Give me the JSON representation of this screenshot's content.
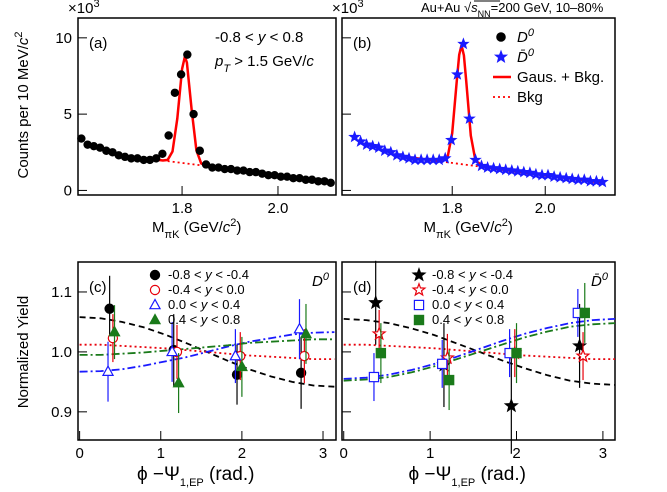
{
  "chart_data": [
    {
      "type": "scatter",
      "label": "(a)",
      "multiplier": [
        "×10",
        "3"
      ],
      "y_label": [
        "Counts per 10 MeV/",
        "c",
        "2"
      ],
      "x_label": [
        "M",
        "πK",
        " (GeV/",
        "c",
        "2",
        ")"
      ],
      "notes": [
        [
          "-0.8 < ",
          "y",
          " < 0.8"
        ],
        [
          "p",
          "T",
          " > 1.5 GeV/",
          "c"
        ]
      ],
      "xlim": [
        1.583,
        2.121
      ],
      "ylim": [
        -0.3,
        11.3
      ],
      "xticks": [
        1.8,
        {
          "value": 2,
          "label": "2.0"
        }
      ],
      "yticks": [
        0,
        5,
        10
      ],
      "series": [
        {
          "color": "#000000",
          "marker": "circle",
          "x": [
            1.59,
            1.603,
            1.616,
            1.629,
            1.642,
            1.655,
            1.668,
            1.681,
            1.694,
            1.707,
            1.72,
            1.733,
            1.746,
            1.759,
            1.772,
            1.785,
            1.798,
            1.811,
            1.824,
            1.837,
            1.85,
            1.863,
            1.876,
            1.889,
            1.902,
            1.915,
            1.928,
            1.941,
            1.954,
            1.967,
            1.98,
            1.993,
            2.006,
            2.019,
            2.032,
            2.045,
            2.058,
            2.071,
            2.084,
            2.097,
            2.11
          ],
          "values": [
            3.4,
            3.0,
            2.9,
            2.8,
            2.6,
            2.5,
            2.3,
            2.2,
            2.1,
            2.1,
            2.0,
            2.0,
            2.1,
            2.4,
            3.6,
            6.4,
            7.6,
            8.9,
            5.0,
            2.6,
            1.7,
            1.5,
            1.5,
            1.4,
            1.4,
            1.3,
            1.3,
            1.2,
            1.2,
            1.1,
            1.0,
            1.0,
            0.9,
            0.9,
            0.8,
            0.8,
            0.7,
            0.7,
            0.6,
            0.6,
            0.5
          ]
        }
      ],
      "lines": [
        {
          "color": "#ff0000",
          "dash": "solid",
          "x": [
            1.74,
            1.76,
            1.77,
            1.78,
            1.79,
            1.8,
            1.806,
            1.81,
            1.82,
            1.83,
            1.84,
            1.85,
            1.87,
            1.9,
            1.95,
            2.0,
            2.05,
            2.11
          ],
          "values": [
            2.04,
            1.96,
            2.0,
            2.55,
            4.71,
            7.97,
            8.78,
            8.38,
            5.26,
            2.63,
            1.77,
            1.6,
            1.52,
            1.4,
            1.2,
            1.0,
            0.8,
            0.56
          ]
        },
        {
          "color": "#ff0000",
          "dash": "dotted",
          "x": [
            1.77,
            2.12
          ],
          "values": [
            1.92,
            0.52
          ]
        }
      ]
    },
    {
      "type": "scatter",
      "label": "(b)",
      "multiplier": [
        "×10",
        "3"
      ],
      "header": [
        "Au+Au ",
        "√",
        "s",
        "NN",
        "=200 GeV, 10–80%"
      ],
      "x_label": [
        "M",
        "πK",
        " (GeV/",
        "c",
        "2",
        ")"
      ],
      "xlim": [
        1.563,
        2.15
      ],
      "ylim": [
        -0.3,
        11.3
      ],
      "xticks": [
        1.8,
        {
          "value": 2,
          "label": "2.0"
        }
      ],
      "yticks": [
        0,
        5,
        10
      ],
      "y_tick_labels": false,
      "legend": "upper right",
      "series": [
        {
          "name": [
            "D",
            "0"
          ],
          "color": "#000000",
          "marker": "circle",
          "x": [],
          "values": []
        },
        {
          "name": [
            "D̄",
            "0"
          ],
          "color": "#1a1aff",
          "marker": "star",
          "x": [
            1.59,
            1.603,
            1.616,
            1.629,
            1.642,
            1.655,
            1.668,
            1.681,
            1.694,
            1.707,
            1.72,
            1.733,
            1.746,
            1.759,
            1.772,
            1.785,
            1.798,
            1.811,
            1.824,
            1.837,
            1.85,
            1.863,
            1.876,
            1.889,
            1.902,
            1.915,
            1.928,
            1.941,
            1.954,
            1.967,
            1.98,
            1.993,
            2.006,
            2.019,
            2.032,
            2.045,
            2.058,
            2.071,
            2.084,
            2.097,
            2.11,
            2.123
          ],
          "values": [
            3.5,
            3.2,
            3.0,
            2.9,
            2.8,
            2.6,
            2.5,
            2.3,
            2.2,
            2.1,
            2.0,
            2.0,
            2.0,
            2.0,
            2.0,
            2.1,
            3.3,
            7.6,
            9.6,
            4.7,
            2.0,
            1.6,
            1.5,
            1.45,
            1.4,
            1.35,
            1.3,
            1.25,
            1.2,
            1.15,
            1.05,
            1.0,
            1.0,
            0.9,
            0.85,
            0.8,
            0.75,
            0.7,
            0.7,
            0.6,
            0.6,
            0.55
          ]
        }
      ],
      "lines": [
        {
          "name": "Gaus. + Bkg.",
          "color": "#ff0000",
          "dash": "solid",
          "x": [
            1.7,
            1.77,
            1.79,
            1.8,
            1.81,
            1.815,
            1.82,
            1.825,
            1.83,
            1.84,
            1.85,
            1.87,
            1.9,
            1.95,
            2.0,
            2.05,
            2.12
          ],
          "values": [
            2.2,
            1.92,
            2.18,
            3.75,
            7.27,
            8.89,
            9.52,
            8.85,
            7.19,
            3.59,
            1.94,
            1.52,
            1.4,
            1.2,
            1.0,
            0.8,
            0.52
          ]
        },
        {
          "name": "Bkg",
          "color": "#ff0000",
          "dash": "dotted",
          "x": [
            1.68,
            2.12
          ],
          "values": [
            2.28,
            0.52
          ]
        }
      ]
    },
    {
      "type": "scatter",
      "label": "(c)",
      "corner": [
        "D",
        "0"
      ],
      "y_label": "Normalized Yield",
      "x_label": [
        "ϕ −Ψ",
        "1,EP",
        " (rad.)"
      ],
      "xlim": [
        -0.02,
        3.16
      ],
      "ylim": [
        0.853,
        1.15
      ],
      "xticks": [
        0,
        1,
        2,
        3
      ],
      "yticks": [
        0.9,
        {
          "value": 1,
          "label": "1.0"
        },
        1.1
      ],
      "legend": "upper center",
      "series": [
        {
          "name": [
            "-0.8 < ",
            "y",
            " < -0.4"
          ],
          "color": "#000000",
          "marker": "circle",
          "x": [
            0.37,
            1.16,
            1.94,
            2.73
          ],
          "values": [
            1.072,
            1.003,
            0.962,
            0.965
          ],
          "errors": [
            0.055,
            0.06,
            0.05,
            0.06
          ]
        },
        {
          "name": [
            "-0.4 < ",
            "y",
            " < 0.0"
          ],
          "color": "#e8000b",
          "marker": "circle-open",
          "x": [
            0.41,
            1.2,
            1.98,
            2.77
          ],
          "values": [
            1.023,
            1.0,
            0.993,
            0.993
          ],
          "errors": [
            0.04,
            0.045,
            0.04,
            0.045
          ]
        },
        {
          "name": [
            "0.0 < ",
            "y",
            " < 0.4"
          ],
          "color": "#1a1aff",
          "marker": "triangle-open",
          "x": [
            0.35,
            1.14,
            1.92,
            2.71
          ],
          "values": [
            0.967,
            1.0,
            0.993,
            1.038
          ],
          "errors": [
            0.05,
            0.05,
            0.045,
            0.05
          ]
        },
        {
          "name": [
            "0.4 < ",
            "y",
            " < 0.8"
          ],
          "color": "#1a7a1a",
          "marker": "triangle",
          "x": [
            0.43,
            1.22,
            2.0,
            2.79
          ],
          "values": [
            1.033,
            0.948,
            0.975,
            1.03
          ],
          "errors": [
            0.045,
            0.05,
            0.05,
            0.05
          ]
        }
      ],
      "lines": [
        {
          "color": "#000000",
          "dash": "dashed",
          "x": [
            0,
            0.26,
            0.52,
            0.79,
            1.05,
            1.31,
            1.57,
            1.83,
            2.09,
            2.36,
            2.62,
            2.88,
            3.14
          ],
          "values": [
            1.058,
            1.056,
            1.05,
            1.041,
            1.029,
            1.015,
            1.0,
            0.985,
            0.971,
            0.959,
            0.95,
            0.944,
            0.942
          ]
        },
        {
          "color": "#e8000b",
          "dash": "dotted",
          "x": [
            0,
            0.26,
            0.52,
            0.79,
            1.05,
            1.31,
            1.57,
            1.83,
            2.09,
            2.36,
            2.62,
            2.88,
            3.14
          ],
          "values": [
            1.012,
            1.012,
            1.01,
            1.008,
            1.006,
            1.003,
            1.0,
            0.997,
            0.994,
            0.992,
            0.99,
            0.988,
            0.988
          ]
        },
        {
          "color": "#1a1aff",
          "dash": "dashdot",
          "x": [
            0,
            0.26,
            0.52,
            0.79,
            1.05,
            1.31,
            1.57,
            1.83,
            2.09,
            2.36,
            2.62,
            2.88,
            3.14
          ],
          "values": [
            0.967,
            0.968,
            0.971,
            0.977,
            0.984,
            0.991,
            1.0,
            1.009,
            1.017,
            1.023,
            1.029,
            1.032,
            1.033
          ]
        },
        {
          "color": "#1a7a1a",
          "dash": "dashdot",
          "x": [
            0,
            0.26,
            0.52,
            0.79,
            1.05,
            1.31,
            1.57,
            1.83,
            2.09,
            2.36,
            2.62,
            2.88,
            3.14
          ],
          "values": [
            0.995,
            0.995,
            0.997,
            0.999,
            1.002,
            1.005,
            1.008,
            1.011,
            1.015,
            1.017,
            1.019,
            1.021,
            1.021
          ]
        }
      ]
    },
    {
      "type": "scatter",
      "label": "(d)",
      "corner": [
        "D̄",
        "0"
      ],
      "x_label": [
        "ϕ −Ψ",
        "1,EP",
        " (rad.)"
      ],
      "xlim": [
        -0.02,
        3.14
      ],
      "ylim": [
        0.853,
        1.15
      ],
      "xticks": [
        0,
        1,
        2,
        3
      ],
      "yticks": [
        0.9,
        {
          "value": 1,
          "label": "1.0"
        },
        1.1
      ],
      "y_tick_labels": false,
      "legend": "upper center",
      "series": [
        {
          "name": [
            "-0.8 < ",
            "y",
            " < -0.4"
          ],
          "color": "#000000",
          "marker": "star",
          "x": [
            0.37,
            1.16,
            1.94,
            2.73
          ],
          "values": [
            1.082,
            0.978,
            0.91,
            1.01
          ],
          "errors": [
            0.07,
            0.07,
            0.08,
            0.07
          ]
        },
        {
          "name": [
            "-0.4 < ",
            "y",
            " < 0.0"
          ],
          "color": "#e8000b",
          "marker": "star-open",
          "x": [
            0.41,
            1.2,
            1.98,
            2.77
          ],
          "values": [
            1.03,
            0.99,
            0.998,
            0.993
          ],
          "errors": [
            0.04,
            0.04,
            0.04,
            0.04
          ]
        },
        {
          "name": [
            "0.0 < ",
            "y",
            " < 0.4"
          ],
          "color": "#1a1aff",
          "marker": "square-open",
          "x": [
            0.35,
            1.14,
            1.92,
            2.71
          ],
          "values": [
            0.958,
            0.98,
            0.998,
            1.065
          ],
          "errors": [
            0.04,
            0.04,
            0.04,
            0.04
          ]
        },
        {
          "name": [
            "0.4 < ",
            "y",
            " < 0.8"
          ],
          "color": "#1a7a1a",
          "marker": "square",
          "x": [
            0.43,
            1.22,
            2.0,
            2.79
          ],
          "values": [
            0.998,
            0.953,
            0.998,
            1.065
          ],
          "errors": [
            0.05,
            0.05,
            0.05,
            0.05
          ]
        }
      ],
      "lines": [
        {
          "color": "#000000",
          "dash": "dashed",
          "x": [
            0,
            0.26,
            0.52,
            0.79,
            1.05,
            1.31,
            1.57,
            1.83,
            2.09,
            2.36,
            2.62,
            2.88,
            3.14
          ],
          "values": [
            1.055,
            1.053,
            1.048,
            1.039,
            1.028,
            1.014,
            1.0,
            0.986,
            0.973,
            0.961,
            0.952,
            0.947,
            0.945
          ]
        },
        {
          "color": "#e8000b",
          "dash": "dotted",
          "x": [
            0,
            0.26,
            0.52,
            0.79,
            1.05,
            1.31,
            1.57,
            1.83,
            2.09,
            2.36,
            2.62,
            2.88,
            3.14
          ],
          "values": [
            1.012,
            1.012,
            1.01,
            1.008,
            1.006,
            1.003,
            1.0,
            0.997,
            0.994,
            0.992,
            0.99,
            0.988,
            0.988
          ]
        },
        {
          "color": "#1a1aff",
          "dash": "dashdot",
          "x": [
            0,
            0.26,
            0.52,
            0.79,
            1.05,
            1.31,
            1.57,
            1.83,
            2.09,
            2.36,
            2.62,
            2.88,
            3.14
          ],
          "values": [
            0.955,
            0.957,
            0.962,
            0.97,
            0.98,
            0.992,
            1.005,
            1.018,
            1.03,
            1.04,
            1.048,
            1.053,
            1.055
          ]
        },
        {
          "color": "#1a7a1a",
          "dash": "dashdot",
          "x": [
            0,
            0.26,
            0.52,
            0.79,
            1.05,
            1.31,
            1.57,
            1.83,
            2.09,
            2.36,
            2.62,
            2.88,
            3.14
          ],
          "values": [
            0.952,
            0.954,
            0.958,
            0.966,
            0.976,
            0.988,
            1.0,
            1.012,
            1.024,
            1.034,
            1.042,
            1.046,
            1.048
          ]
        }
      ]
    }
  ]
}
